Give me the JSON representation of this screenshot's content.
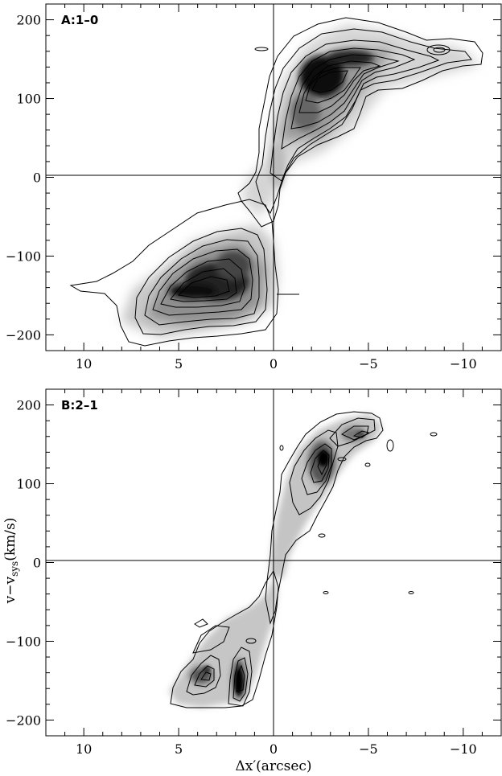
{
  "chart_data": [
    {
      "type": "heatmap",
      "panel_label": "A:1–0",
      "x_ticks": [
        10,
        5,
        0,
        -5,
        -10
      ],
      "x_tick_labels": [
        "10",
        "5",
        "0",
        "−5",
        "−10"
      ],
      "y_ticks": [
        200,
        100,
        0,
        -100,
        -200
      ],
      "y_tick_labels": [
        "200",
        "100",
        "0",
        "−100",
        "−200"
      ],
      "xlim": [
        12,
        -12
      ],
      "ylim": [
        -220,
        220
      ],
      "reference_lines": {
        "x": 0,
        "y": 0
      },
      "colormap": "greyscale",
      "emission_peaks": [
        {
          "x": 2.5,
          "y": 120,
          "level": 1.0
        },
        {
          "x": 4.0,
          "y": 150,
          "level": 0.85
        },
        {
          "x": 2.5,
          "y": -140,
          "level": 1.0
        },
        {
          "x": 4.0,
          "y": -148,
          "level": 0.85
        },
        {
          "x": 8.5,
          "y": 160,
          "level": 0.25
        }
      ]
    },
    {
      "type": "heatmap",
      "panel_label": "B:2–1",
      "x_ticks": [
        10,
        5,
        0,
        -5,
        -10
      ],
      "x_tick_labels": [
        "10",
        "5",
        "0",
        "−5",
        "−10"
      ],
      "y_ticks": [
        200,
        100,
        0,
        -100,
        -200
      ],
      "y_tick_labels": [
        "200",
        "100",
        "0",
        "−100",
        "−200"
      ],
      "xlim": [
        12,
        -12
      ],
      "ylim": [
        -220,
        220
      ],
      "reference_lines": {
        "x": 0,
        "y": 0
      },
      "colormap": "greyscale",
      "emission_peaks": [
        {
          "x": 2.6,
          "y": 125,
          "level": 1.0
        },
        {
          "x": 4.5,
          "y": 158,
          "level": 0.6
        },
        {
          "x": 1.7,
          "y": -150,
          "level": 1.0
        },
        {
          "x": 3.6,
          "y": -140,
          "level": 0.7
        },
        {
          "x": 0.3,
          "y": 0,
          "level": 0.3
        }
      ]
    }
  ],
  "figure": {
    "xlabel": "Δx′(arcsec)",
    "ylabel_main": "v−v",
    "ylabel_sub": "sys",
    "ylabel_unit": "(km/s)"
  }
}
